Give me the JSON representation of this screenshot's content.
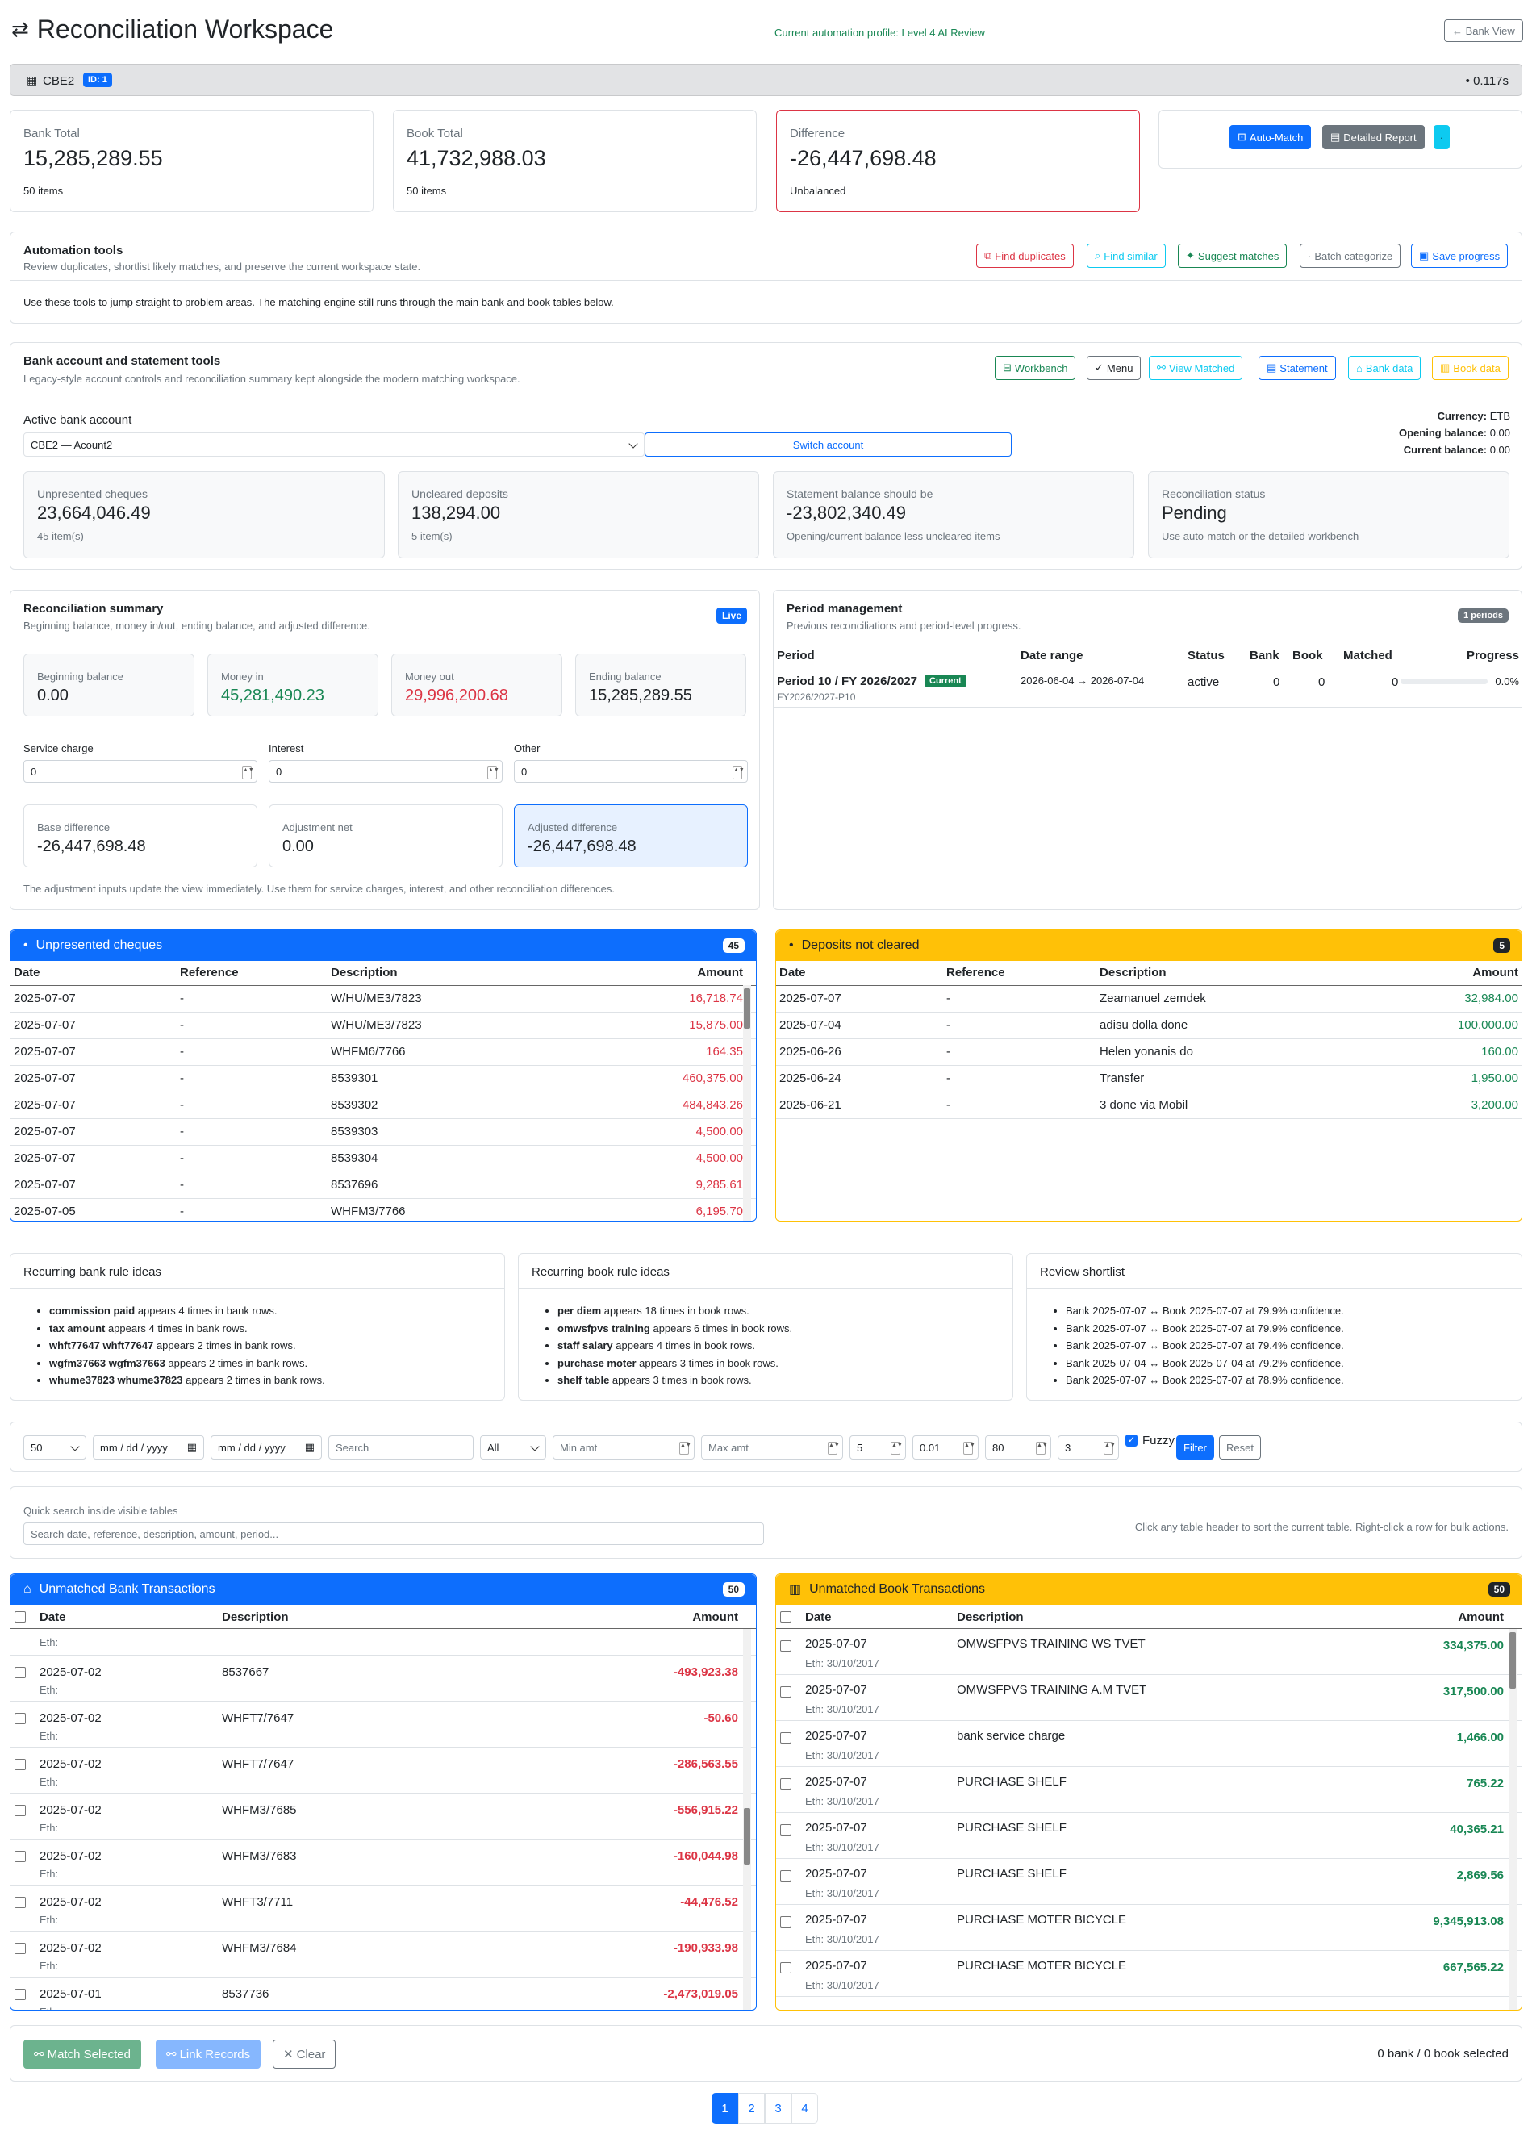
{
  "header": {
    "title": "Reconciliation Workspace",
    "profile": "Current automation profile: Level 4 AI Review",
    "back_label": "← Bank View"
  },
  "account_bar": {
    "name": "CBE2",
    "id_badge": "ID: 1",
    "timing": "• 0.117s"
  },
  "totals": {
    "bank": {
      "label": "Bank Total",
      "value": "15,285,289.55",
      "sub": "50 items"
    },
    "book": {
      "label": "Book Total",
      "value": "41,732,988.03",
      "sub": "50 items"
    },
    "diff": {
      "label": "Difference",
      "value": "-26,447,698.48",
      "sub": "Unbalanced"
    }
  },
  "actions": {
    "auto_match": "Auto-Match",
    "detailed_report": "Detailed Report",
    "extra": "·"
  },
  "automation": {
    "title": "Automation tools",
    "subtitle": "Review duplicates, shortlist likely matches, and preserve the current workspace state.",
    "find_duplicates": "Find duplicates",
    "find_similar": "Find similar",
    "suggest_matches": "Suggest matches",
    "batch_categorize": "Batch categorize",
    "save_progress": "Save progress",
    "note": "Use these tools to jump straight to problem areas. The matching engine still runs through the main bank and book tables below."
  },
  "account_tools": {
    "title": "Bank account and statement tools",
    "subtitle": "Legacy-style account controls and reconciliation summary kept alongside the modern matching workspace.",
    "workbench": "Workbench",
    "menu": "Menu",
    "view_matched": "View Matched",
    "statement": "Statement",
    "bank_data": "Bank data",
    "book_data": "Book data",
    "active_label": "Active bank account",
    "active_value": "CBE2 — Acount2",
    "switch": "Switch account",
    "currency_label": "Currency:",
    "currency": "ETB",
    "opening_label": "Opening balance:",
    "opening": "0.00",
    "current_label": "Current balance:",
    "current": "0.00",
    "unpresented": {
      "label": "Unpresented cheques",
      "value": "23,664,046.49",
      "sub": "45 item(s)"
    },
    "uncleared": {
      "label": "Uncleared deposits",
      "value": "138,294.00",
      "sub": "5 item(s)"
    },
    "statement_bal": {
      "label": "Statement balance should be",
      "value": "-23,802,340.49",
      "sub": "Opening/current balance less uncleared items"
    },
    "status": {
      "label": "Reconciliation status",
      "value": "Pending",
      "sub": "Use auto-match or the detailed workbench"
    }
  },
  "summary": {
    "title": "Reconciliation summary",
    "subtitle": "Beginning balance, money in/out, ending balance, and adjusted difference.",
    "badge": "Live",
    "beginning": {
      "label": "Beginning balance",
      "value": "0.00"
    },
    "money_in": {
      "label": "Money in",
      "value": "45,281,490.23"
    },
    "money_out": {
      "label": "Money out",
      "value": "29,996,200.68"
    },
    "ending": {
      "label": "Ending balance",
      "value": "15,285,289.55"
    },
    "service_label": "Service charge",
    "service": "0",
    "interest_label": "Interest",
    "interest": "0",
    "other_label": "Other",
    "other": "0",
    "base": {
      "label": "Base difference",
      "value": "-26,447,698.48"
    },
    "adj_net": {
      "label": "Adjustment net",
      "value": "0.00"
    },
    "adjusted": {
      "label": "Adjusted difference",
      "value": "-26,447,698.48"
    },
    "note": "The adjustment inputs update the view immediately. Use them for service charges, interest, and other reconciliation differences."
  },
  "periods": {
    "title": "Period management",
    "subtitle": "Previous reconciliations and period-level progress.",
    "badge": "1 periods",
    "cols": [
      "Period",
      "Date range",
      "Status",
      "Bank",
      "Book",
      "Matched",
      "Progress"
    ],
    "row": {
      "name": "Period 10 / FY 2026/2027",
      "current": "Current",
      "code": "FY2026/2027-P10",
      "range": "2026-06-04 → 2026-07-04",
      "status": "active",
      "bank": "0",
      "book": "0",
      "matched": "0",
      "progress": "0.0%"
    }
  },
  "unpresented_table": {
    "title": "Unpresented cheques",
    "count": "45",
    "cols": [
      "Date",
      "Reference",
      "Description",
      "Amount"
    ],
    "rows": [
      [
        "2025-07-07",
        "-",
        "W/HU/ME3/7823",
        "16,718.74"
      ],
      [
        "2025-07-07",
        "-",
        "W/HU/ME3/7823",
        "15,875.00"
      ],
      [
        "2025-07-07",
        "-",
        "WHFM6/7766",
        "164.35"
      ],
      [
        "2025-07-07",
        "-",
        "8539301",
        "460,375.00"
      ],
      [
        "2025-07-07",
        "-",
        "8539302",
        "484,843.26"
      ],
      [
        "2025-07-07",
        "-",
        "8539303",
        "4,500.00"
      ],
      [
        "2025-07-07",
        "-",
        "8539304",
        "4,500.00"
      ],
      [
        "2025-07-07",
        "-",
        "8537696",
        "9,285.61"
      ],
      [
        "2025-07-05",
        "-",
        "WHFM3/7766",
        "6,195.70"
      ]
    ]
  },
  "deposits_table": {
    "title": "Deposits not cleared",
    "count": "5",
    "cols": [
      "Date",
      "Reference",
      "Description",
      "Amount"
    ],
    "rows": [
      [
        "2025-07-07",
        "-",
        "Zeamanuel zemdek",
        "32,984.00"
      ],
      [
        "2025-07-04",
        "-",
        "adisu dolla done",
        "100,000.00"
      ],
      [
        "2025-06-26",
        "-",
        "Helen yonanis do",
        "160.00"
      ],
      [
        "2025-06-24",
        "-",
        "Transfer",
        "1,950.00"
      ],
      [
        "2025-06-21",
        "-",
        "3 done via Mobil",
        "3,200.00"
      ]
    ]
  },
  "ideas": {
    "bank": {
      "title": "Recurring bank rule ideas",
      "items": [
        [
          "commission paid",
          " appears 4 times in bank rows."
        ],
        [
          "tax amount",
          " appears 4 times in bank rows."
        ],
        [
          "whft77647 whft77647",
          " appears 2 times in bank rows."
        ],
        [
          "wgfm37663 wgfm37663",
          " appears 2 times in bank rows."
        ],
        [
          "whume37823 whume37823",
          " appears 2 times in bank rows."
        ]
      ]
    },
    "book": {
      "title": "Recurring book rule ideas",
      "items": [
        [
          "per diem",
          " appears 18 times in book rows."
        ],
        [
          "omwsfpvs training",
          " appears 6 times in book rows."
        ],
        [
          "staff salary",
          " appears 4 times in book rows."
        ],
        [
          "purchase moter",
          " appears 3 times in book rows."
        ],
        [
          "shelf table",
          " appears 3 times in book rows."
        ]
      ]
    },
    "review": {
      "title": "Review shortlist",
      "items": [
        "Bank 2025-07-07 ↔ Book 2025-07-07 at 79.9% confidence.",
        "Bank 2025-07-07 ↔ Book 2025-07-07 at 79.9% confidence.",
        "Bank 2025-07-07 ↔ Book 2025-07-07 at 79.4% confidence.",
        "Bank 2025-07-04 ↔ Book 2025-07-04 at 79.2% confidence.",
        "Bank 2025-07-07 ↔ Book 2025-07-07 at 78.9% confidence."
      ]
    }
  },
  "filters": {
    "page_size": "50",
    "date_from": "mm / dd / yyyy",
    "date_to": "mm / dd / yyyy",
    "search": "Search",
    "type": "All",
    "min": "Min amt",
    "max": "Max amt",
    "v1": "5",
    "v2": "0.01",
    "v3": "80",
    "v4": "3",
    "fuzzy": "Fuzzy",
    "filter": "Filter",
    "reset": "Reset"
  },
  "quick": {
    "label": "Quick search inside visible tables",
    "placeholder": "Search date, reference, description, amount, period...",
    "hint": "Click any table header to sort the current table. Right-click a row for bulk actions."
  },
  "bank_tx": {
    "title": "Unmatched Bank Transactions",
    "count": "50",
    "cols": [
      "Date",
      "Description",
      "Amount"
    ],
    "eth": "Eth:",
    "rows": [
      [
        "2025-07-02",
        "8537667",
        "-493,923.38"
      ],
      [
        "2025-07-02",
        "WHFT7/7647",
        "-50.60"
      ],
      [
        "2025-07-02",
        "WHFT7/7647",
        "-286,563.55"
      ],
      [
        "2025-07-02",
        "WHFM3/7685",
        "-556,915.22"
      ],
      [
        "2025-07-02",
        "WHFM3/7683",
        "-160,044.98"
      ],
      [
        "2025-07-02",
        "WHFT3/7711",
        "-44,476.52"
      ],
      [
        "2025-07-02",
        "WHFM3/7684",
        "-190,933.98"
      ],
      [
        "2025-07-01",
        "8537736",
        "-2,473,019.05"
      ]
    ]
  },
  "book_tx": {
    "title": "Unmatched Book Transactions",
    "count": "50",
    "cols": [
      "Date",
      "Description",
      "Amount"
    ],
    "rows": [
      [
        "2025-07-07",
        "OMWSFPVS TRAINING WS TVET",
        "334,375.00",
        "Eth: 30/10/2017"
      ],
      [
        "2025-07-07",
        "OMWSFPVS TRAINING A.M TVET",
        "317,500.00",
        "Eth: 30/10/2017"
      ],
      [
        "2025-07-07",
        "bank service charge",
        "1,466.00",
        "Eth: 30/10/2017"
      ],
      [
        "2025-07-07",
        "PURCHASE SHELF",
        "765.22",
        "Eth: 30/10/2017"
      ],
      [
        "2025-07-07",
        "PURCHASE SHELF",
        "40,365.21",
        "Eth: 30/10/2017"
      ],
      [
        "2025-07-07",
        "PURCHASE SHELF",
        "2,869.56",
        "Eth: 30/10/2017"
      ],
      [
        "2025-07-07",
        "PURCHASE MOTER BICYCLE",
        "9,345,913.08",
        "Eth: 30/10/2017"
      ],
      [
        "2025-07-07",
        "PURCHASE MOTER BICYCLE",
        "667,565.22",
        "Eth: 30/10/2017"
      ]
    ]
  },
  "footer": {
    "match": "Match Selected",
    "link": "Link Records",
    "clear": "Clear",
    "selected": "0 bank / 0 book selected"
  },
  "pagination": [
    "1",
    "2",
    "3",
    "4"
  ]
}
